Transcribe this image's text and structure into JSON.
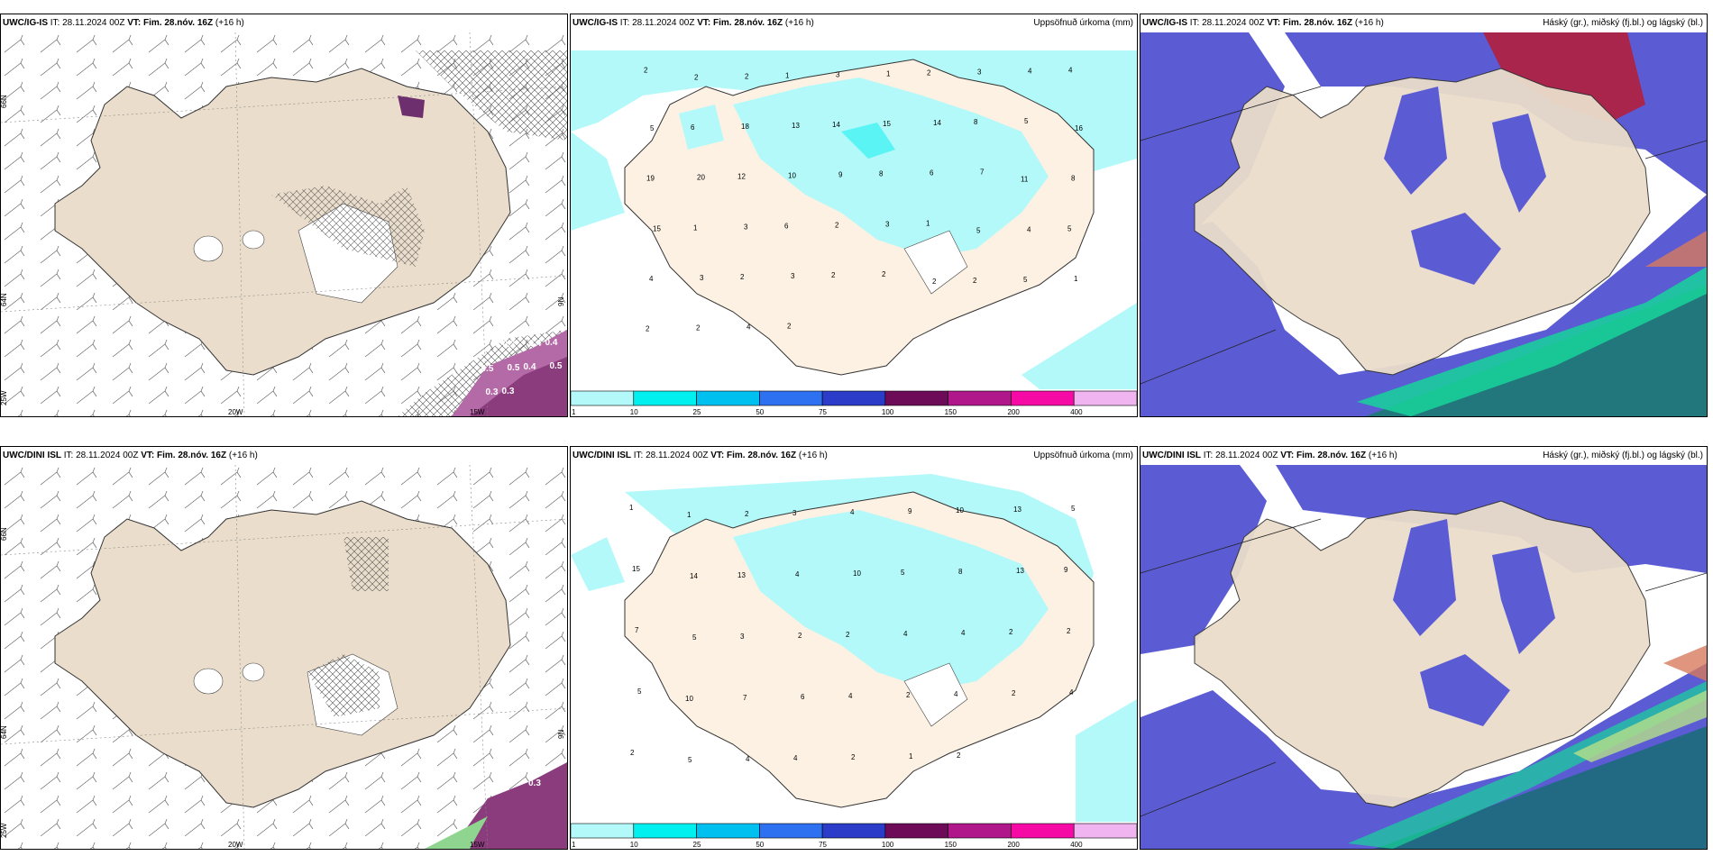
{
  "header": {
    "it_label": "IT:",
    "it_value": "28.11.2024 00Z",
    "vt_label": "VT:",
    "vt_value": "Fim. 28.nóv. 16Z",
    "lead": "(+16 h)",
    "precip_title": "Uppsöfnuð úrkoma (mm)",
    "cloud_title": "Háský (gr.), miðský (fj.bl.) og lágský (bl.)"
  },
  "rows": [
    {
      "model": "UWC/IG-IS"
    },
    {
      "model": "UWC/DINI ISL"
    }
  ],
  "axis_labels": {
    "lat66": "66N",
    "lat64": "64N",
    "lon25": "25W",
    "lon20": "20W",
    "lon15": "15W",
    "lon9": "9N"
  },
  "precip_colorbar": {
    "ticks": [
      "1",
      "10",
      "25",
      "50",
      "75",
      "100",
      "150",
      "200",
      "400"
    ],
    "colors": [
      "#b4f9f9",
      "#00f0f0",
      "#00c0f0",
      "#2d70f0",
      "#2a3cc8",
      "#6e0b58",
      "#b0178a",
      "#f50aa5",
      "#f0b4f0"
    ]
  },
  "precip_values_top": [
    "2",
    "2",
    "2",
    "1",
    "3",
    "1",
    "2",
    "3",
    "4",
    "4",
    "5",
    "6",
    "18",
    "13",
    "14",
    "15",
    "14",
    "8",
    "5",
    "16",
    "19",
    "20",
    "12",
    "10",
    "9",
    "8",
    "6",
    "7",
    "11",
    "8",
    "15",
    "1",
    "3",
    "6",
    "2",
    "3",
    "1",
    "5",
    "4",
    "5",
    "4",
    "3",
    "2",
    "3",
    "2",
    "2",
    "2",
    "2",
    "5",
    "1",
    "2",
    "2",
    "4",
    "2"
  ],
  "precip_values_bottom": [
    "1",
    "1",
    "2",
    "3",
    "4",
    "9",
    "10",
    "13",
    "5",
    "15",
    "14",
    "13",
    "4",
    "10",
    "5",
    "8",
    "13",
    "9",
    "7",
    "5",
    "3",
    "2",
    "2",
    "4",
    "4",
    "2",
    "2",
    "5",
    "10",
    "7",
    "6",
    "4",
    "2",
    "4",
    "2",
    "4",
    "2",
    "5",
    "4",
    "4",
    "2",
    "1",
    "2"
  ],
  "fog_values_top": [
    "0.3",
    "0.3",
    "0.4",
    "0.4",
    "0.5",
    "0.5",
    "0.4",
    "0.5",
    "0.3",
    "0.3"
  ],
  "fog_values_bottom": [
    "0.3"
  ]
}
